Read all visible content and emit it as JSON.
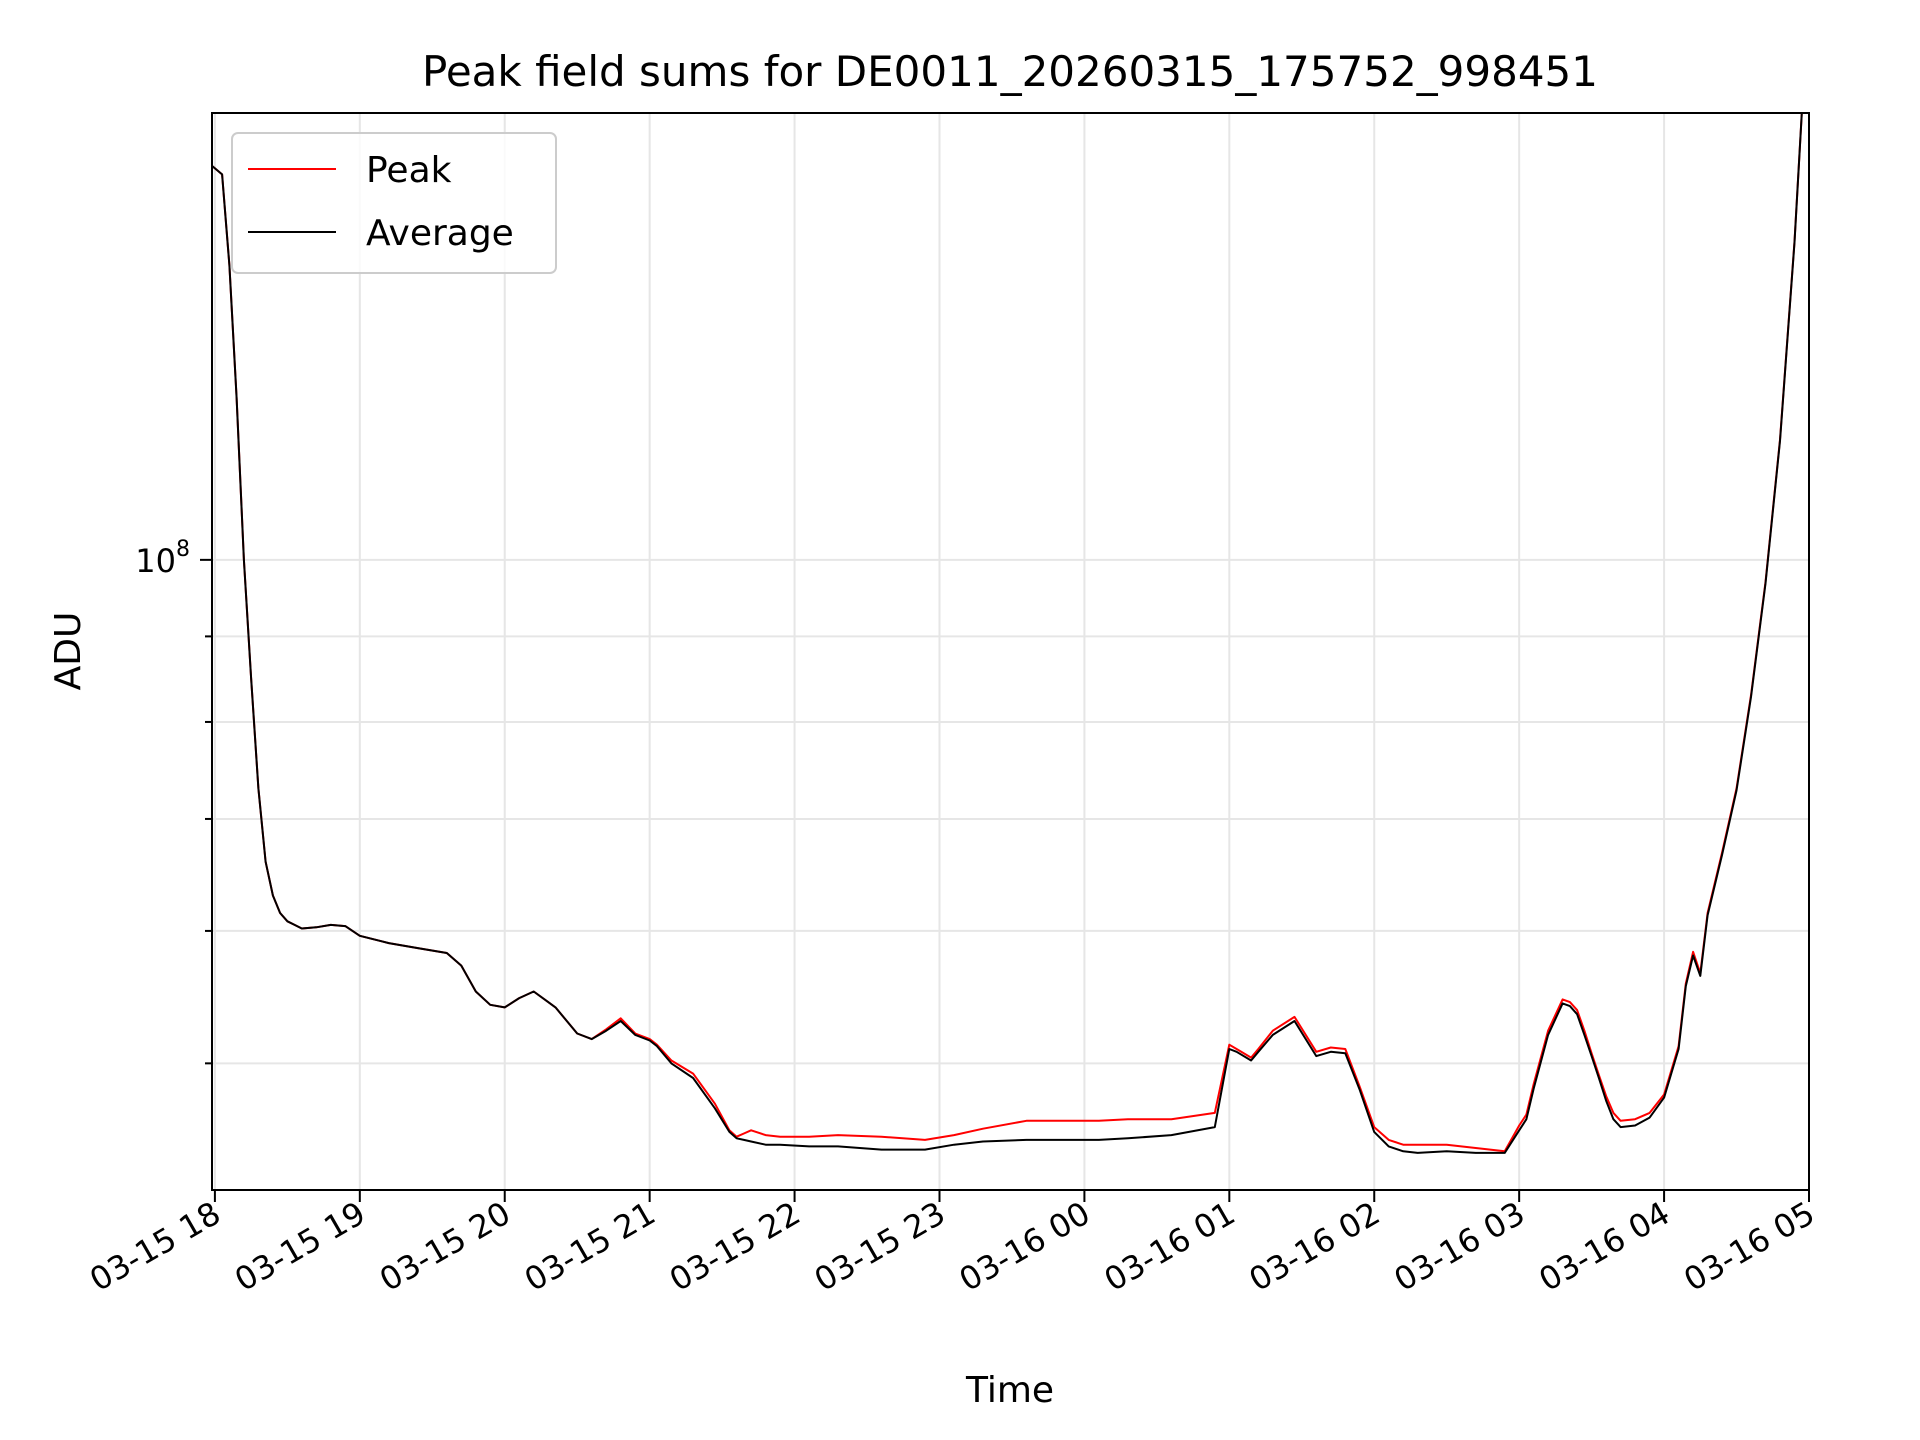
{
  "chart_data": {
    "type": "line",
    "title": "Peak field sums for DE0011_20260315_175752_998451",
    "xlabel": "Time",
    "ylabel": "ADU",
    "x_unit": "hours since 03-15 00:00",
    "xlim": [
      17.98,
      29.0
    ],
    "ylim": [
      42000000,
      185000000
    ],
    "yscale": "log",
    "grid": true,
    "legend_position": "upper-left",
    "x_ticks": [
      {
        "value": 18,
        "label": "03-15 18"
      },
      {
        "value": 19,
        "label": "03-15 19"
      },
      {
        "value": 20,
        "label": "03-15 20"
      },
      {
        "value": 21,
        "label": "03-15 21"
      },
      {
        "value": 22,
        "label": "03-15 22"
      },
      {
        "value": 23,
        "label": "03-15 23"
      },
      {
        "value": 24,
        "label": "03-16 00"
      },
      {
        "value": 25,
        "label": "03-16 01"
      },
      {
        "value": 26,
        "label": "03-16 02"
      },
      {
        "value": 27,
        "label": "03-16 03"
      },
      {
        "value": 28,
        "label": "03-16 04"
      },
      {
        "value": 29,
        "label": "03-16 05"
      }
    ],
    "y_major_ticks": [
      {
        "value": 100000000,
        "base": "10",
        "exponent": "8"
      }
    ],
    "y_minor_ticks": [
      50000000,
      60000000,
      70000000,
      80000000,
      90000000
    ],
    "series": [
      {
        "name": "Peak",
        "color": "#ff0000",
        "x": [
          17.98,
          18.05,
          18.1,
          18.15,
          18.2,
          18.25,
          18.3,
          18.35,
          18.4,
          18.45,
          18.5,
          18.55,
          18.6,
          18.7,
          18.8,
          18.9,
          19.0,
          19.2,
          19.4,
          19.6,
          19.7,
          19.8,
          19.9,
          20.0,
          20.1,
          20.2,
          20.3,
          20.35,
          20.5,
          20.6,
          20.7,
          20.8,
          20.9,
          21.0,
          21.05,
          21.15,
          21.3,
          21.45,
          21.55,
          21.6,
          21.65,
          21.7,
          21.8,
          21.9,
          22.1,
          22.3,
          22.6,
          22.9,
          23.1,
          23.3,
          23.6,
          23.9,
          24.1,
          24.3,
          24.6,
          24.9,
          25.0,
          25.05,
          25.15,
          25.2,
          25.3,
          25.45,
          25.6,
          25.7,
          25.8,
          25.9,
          26.0,
          26.1,
          26.2,
          26.3,
          26.5,
          26.7,
          26.9,
          27.0,
          27.05,
          27.1,
          27.2,
          27.3,
          27.35,
          27.4,
          27.45,
          27.5,
          27.55,
          27.6,
          27.65,
          27.7,
          27.8,
          27.9,
          28.0,
          28.1,
          28.15,
          28.2,
          28.25,
          28.3,
          28.4,
          28.5,
          28.6,
          28.7,
          28.8,
          28.9,
          28.95
        ],
        "values": [
          172000000,
          170000000,
          150000000,
          125000000,
          100000000,
          85000000,
          73000000,
          66000000,
          63000000,
          61500000,
          60800000,
          60500000,
          60200000,
          60300000,
          60500000,
          60400000,
          59600000,
          59000000,
          58600000,
          58200000,
          57200000,
          55200000,
          54200000,
          54000000,
          54700000,
          55200000,
          54400000,
          54000000,
          52100000,
          51700000,
          52400000,
          53200000,
          52100000,
          51700000,
          51300000,
          50200000,
          49300000,
          47300000,
          45600000,
          45200000,
          45400000,
          45600000,
          45300000,
          45200000,
          45200000,
          45300000,
          45200000,
          45000000,
          45300000,
          45700000,
          46200000,
          46200000,
          46200000,
          46300000,
          46300000,
          46700000,
          51300000,
          51000000,
          50400000,
          51000000,
          52300000,
          53300000,
          50800000,
          51100000,
          51000000,
          48400000,
          45800000,
          45000000,
          44700000,
          44700000,
          44700000,
          44500000,
          44300000,
          45900000,
          46600000,
          48600000,
          52300000,
          54600000,
          54400000,
          53800000,
          52300000,
          50700000,
          49200000,
          47800000,
          46700000,
          46200000,
          46300000,
          46700000,
          47900000,
          51200000,
          55800000,
          58300000,
          56600000,
          61500000,
          66800000,
          73000000,
          83000000,
          97000000,
          118000000,
          155000000,
          185000000
        ]
      },
      {
        "name": "Average",
        "color": "#000000",
        "x": [
          17.98,
          18.05,
          18.1,
          18.15,
          18.2,
          18.25,
          18.3,
          18.35,
          18.4,
          18.45,
          18.5,
          18.55,
          18.6,
          18.7,
          18.8,
          18.9,
          19.0,
          19.2,
          19.4,
          19.6,
          19.7,
          19.8,
          19.9,
          20.0,
          20.1,
          20.2,
          20.3,
          20.35,
          20.5,
          20.6,
          20.7,
          20.8,
          20.9,
          21.0,
          21.05,
          21.15,
          21.3,
          21.45,
          21.55,
          21.6,
          21.65,
          21.7,
          21.8,
          21.9,
          22.1,
          22.3,
          22.6,
          22.9,
          23.1,
          23.3,
          23.6,
          23.9,
          24.1,
          24.3,
          24.6,
          24.9,
          25.0,
          25.05,
          25.15,
          25.2,
          25.3,
          25.45,
          25.6,
          25.7,
          25.8,
          25.9,
          26.0,
          26.1,
          26.2,
          26.3,
          26.5,
          26.7,
          26.9,
          27.0,
          27.05,
          27.1,
          27.2,
          27.3,
          27.35,
          27.4,
          27.45,
          27.5,
          27.55,
          27.6,
          27.65,
          27.7,
          27.8,
          27.9,
          28.0,
          28.1,
          28.15,
          28.2,
          28.25,
          28.3,
          28.4,
          28.5,
          28.6,
          28.7,
          28.8,
          28.9,
          28.95
        ],
        "values": [
          172000000,
          170000000,
          150000000,
          125000000,
          100000000,
          85000000,
          73000000,
          66000000,
          63000000,
          61500000,
          60800000,
          60500000,
          60200000,
          60300000,
          60500000,
          60400000,
          59600000,
          59000000,
          58600000,
          58200000,
          57200000,
          55200000,
          54200000,
          54000000,
          54700000,
          55200000,
          54400000,
          54000000,
          52100000,
          51700000,
          52300000,
          53000000,
          52000000,
          51600000,
          51200000,
          50000000,
          49000000,
          47000000,
          45500000,
          45100000,
          45000000,
          44900000,
          44700000,
          44700000,
          44600000,
          44600000,
          44400000,
          44400000,
          44700000,
          44900000,
          45000000,
          45000000,
          45000000,
          45100000,
          45300000,
          45800000,
          51000000,
          50800000,
          50200000,
          50800000,
          52000000,
          53000000,
          50500000,
          50800000,
          50700000,
          48200000,
          45500000,
          44600000,
          44300000,
          44200000,
          44300000,
          44200000,
          44200000,
          45600000,
          46300000,
          48300000,
          52000000,
          54300000,
          54100000,
          53500000,
          52000000,
          50500000,
          49000000,
          47500000,
          46300000,
          45800000,
          45900000,
          46400000,
          47700000,
          51000000,
          55600000,
          58000000,
          56400000,
          61300000,
          66600000,
          72800000,
          82800000,
          96800000,
          117800000,
          154800000,
          185000000
        ]
      }
    ]
  }
}
